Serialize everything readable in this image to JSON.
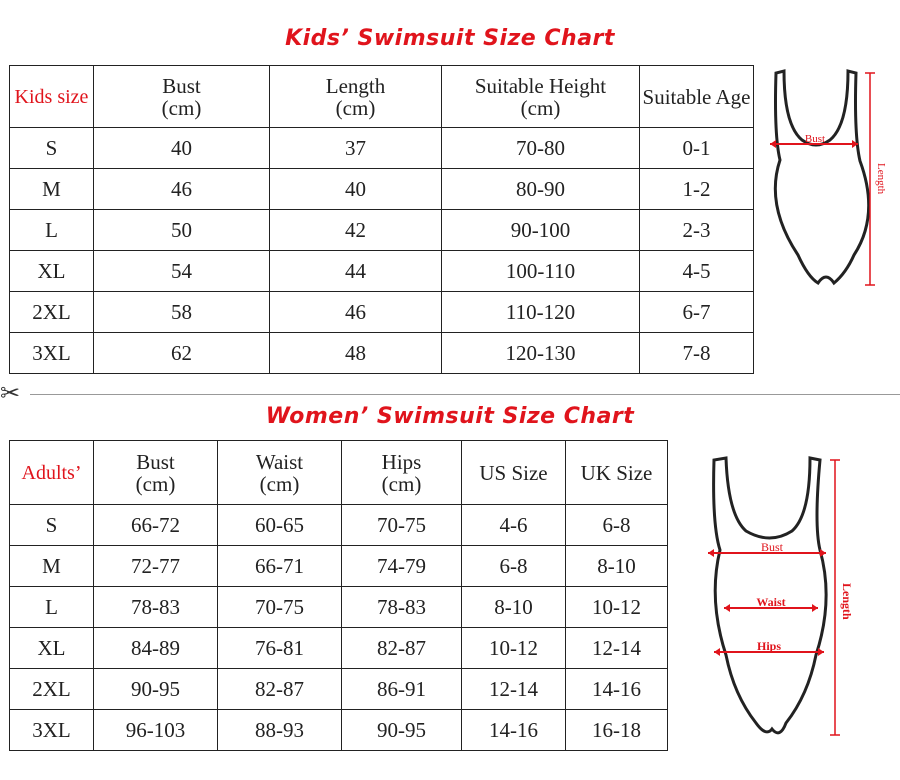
{
  "kids": {
    "title": "Kids’ Swimsuit Size Chart",
    "headers": [
      "Kids size",
      "Bust\n(cm)",
      "Length\n(cm)",
      "Suitable Height\n(cm)",
      "Suitable Age"
    ],
    "rows": [
      [
        "S",
        "40",
        "37",
        "70-80",
        "0-1"
      ],
      [
        "M",
        "46",
        "40",
        "80-90",
        "1-2"
      ],
      [
        "L",
        "50",
        "42",
        "90-100",
        "2-3"
      ],
      [
        "XL",
        "54",
        "44",
        "100-110",
        "4-5"
      ],
      [
        "2XL",
        "58",
        "46",
        "110-120",
        "6-7"
      ],
      [
        "3XL",
        "62",
        "48",
        "120-130",
        "7-8"
      ]
    ],
    "diagram": {
      "bust_label": "Bust",
      "length_label": "Length"
    }
  },
  "women": {
    "title": "Women’ Swimsuit Size Chart",
    "headers": [
      "Adults’",
      "Bust\n(cm)",
      "Waist\n(cm)",
      "Hips\n(cm)",
      "US Size",
      "UK Size"
    ],
    "rows": [
      [
        "S",
        "66-72",
        "60-65",
        "70-75",
        "4-6",
        "6-8"
      ],
      [
        "M",
        "72-77",
        "66-71",
        "74-79",
        "6-8",
        "8-10"
      ],
      [
        "L",
        "78-83",
        "70-75",
        "78-83",
        "8-10",
        "10-12"
      ],
      [
        "XL",
        "84-89",
        "76-81",
        "82-87",
        "10-12",
        "12-14"
      ],
      [
        "2XL",
        "90-95",
        "82-87",
        "86-91",
        "12-14",
        "14-16"
      ],
      [
        "3XL",
        "96-103",
        "88-93",
        "90-95",
        "14-16",
        "16-18"
      ]
    ],
    "diagram": {
      "bust_label": "Bust",
      "waist_label": "Waist",
      "hips_label": "Hips",
      "length_label": "Length"
    }
  },
  "divider_icon": "scissors-icon",
  "colors": {
    "accent": "#e0141c",
    "text": "#222222",
    "border": "#222222"
  }
}
